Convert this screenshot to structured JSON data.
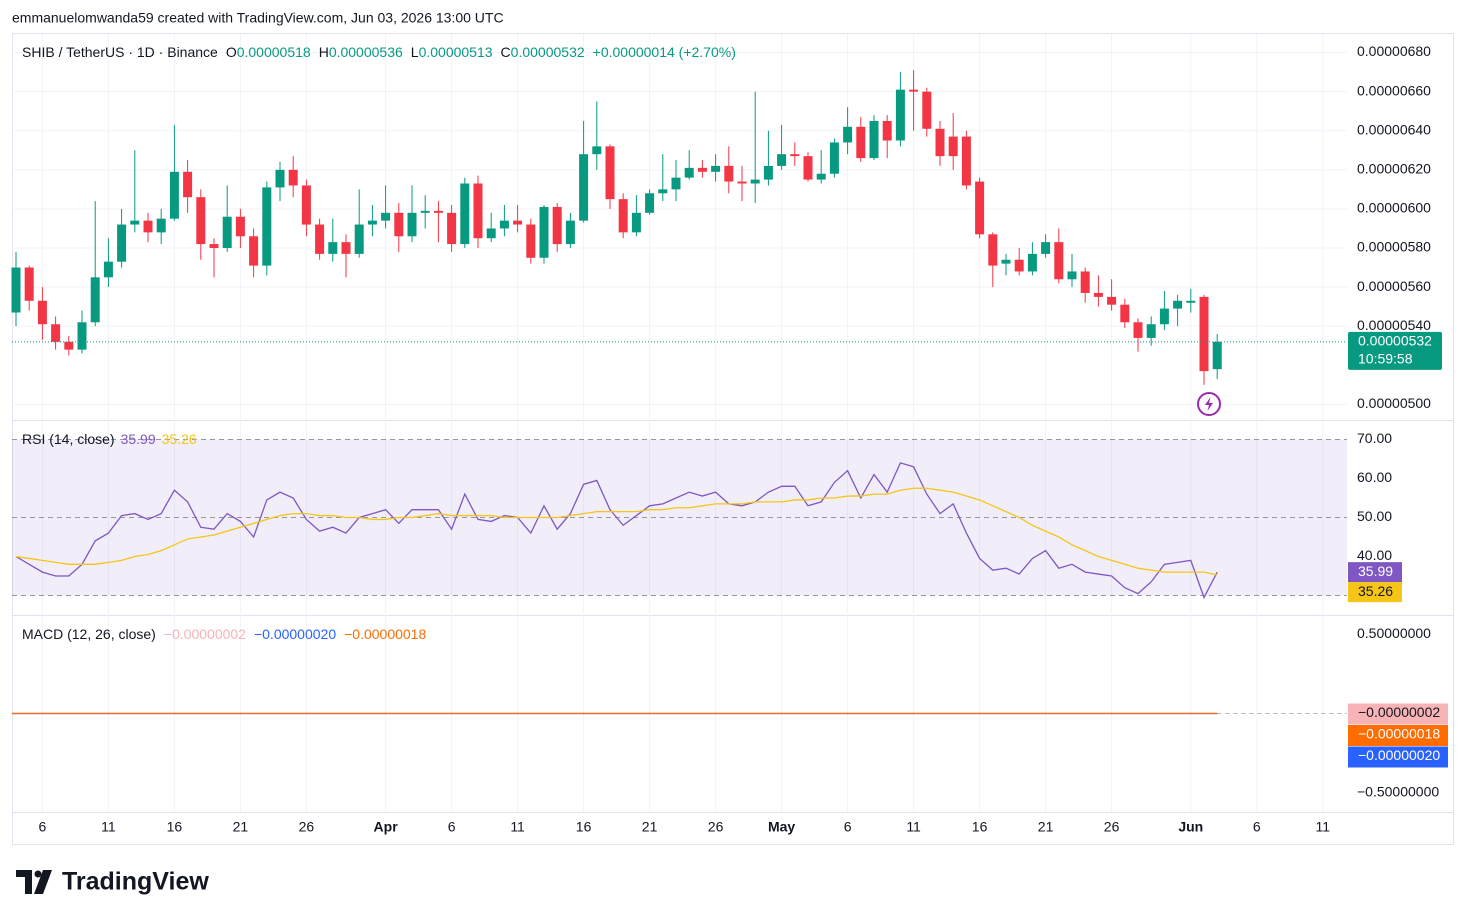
{
  "header": {
    "byline": "emmanuelomwanda59 created with TradingView.com, Jun 03, 2026 13:00 UTC",
    "logo": "TradingView"
  },
  "chart_data": {
    "type": "candlestick",
    "symbol": "SHIB / TetherUS · 1D · Binance",
    "ohlc_legend": [
      {
        "label": "O",
        "value": "0.00000518"
      },
      {
        "label": "H",
        "value": "0.00000536"
      },
      {
        "label": "L",
        "value": "0.00000513"
      },
      {
        "label": "C",
        "value": "0.00000532"
      }
    ],
    "change": "+0.00000014 (+2.70%)",
    "up_color": "#089981",
    "down_color": "#f23645",
    "x": [
      "2026-03-04",
      "2026-03-05",
      "2026-03-06",
      "2026-03-07",
      "2026-03-08",
      "2026-03-09",
      "2026-03-10",
      "2026-03-11",
      "2026-03-12",
      "2026-03-13",
      "2026-03-14",
      "2026-03-15",
      "2026-03-16",
      "2026-03-17",
      "2026-03-18",
      "2026-03-19",
      "2026-03-20",
      "2026-03-21",
      "2026-03-22",
      "2026-03-23",
      "2026-03-24",
      "2026-03-25",
      "2026-03-26",
      "2026-03-27",
      "2026-03-28",
      "2026-03-29",
      "2026-03-30",
      "2026-03-31",
      "2026-04-01",
      "2026-04-02",
      "2026-04-03",
      "2026-04-04",
      "2026-04-05",
      "2026-04-06",
      "2026-04-07",
      "2026-04-08",
      "2026-04-09",
      "2026-04-10",
      "2026-04-11",
      "2026-04-12",
      "2026-04-13",
      "2026-04-14",
      "2026-04-15",
      "2026-04-16",
      "2026-04-17",
      "2026-04-18",
      "2026-04-19",
      "2026-04-20",
      "2026-04-21",
      "2026-04-22",
      "2026-04-23",
      "2026-04-24",
      "2026-04-25",
      "2026-04-26",
      "2026-04-27",
      "2026-04-28",
      "2026-04-29",
      "2026-04-30",
      "2026-05-01",
      "2026-05-02",
      "2026-05-03",
      "2026-05-04",
      "2026-05-05",
      "2026-05-06",
      "2026-05-07",
      "2026-05-08",
      "2026-05-09",
      "2026-05-10",
      "2026-05-11",
      "2026-05-12",
      "2026-05-13",
      "2026-05-14",
      "2026-05-15",
      "2026-05-16",
      "2026-05-17",
      "2026-05-18",
      "2026-05-19",
      "2026-05-20",
      "2026-05-21",
      "2026-05-22",
      "2026-05-23",
      "2026-05-24",
      "2026-05-25",
      "2026-05-26",
      "2026-05-27",
      "2026-05-28",
      "2026-05-29",
      "2026-05-30",
      "2026-05-31",
      "2026-06-01",
      "2026-06-02",
      "2026-06-03"
    ],
    "open": [
      5.47e-06,
      5.7e-06,
      5.53e-06,
      5.41e-06,
      5.32e-06,
      5.28e-06,
      5.42e-06,
      5.65e-06,
      5.73e-06,
      5.92e-06,
      5.94e-06,
      5.88e-06,
      5.95e-06,
      6.19e-06,
      6.06e-06,
      5.82e-06,
      5.8e-06,
      5.96e-06,
      5.86e-06,
      5.71e-06,
      6.11e-06,
      6.2e-06,
      6.12e-06,
      5.92e-06,
      5.77e-06,
      5.83e-06,
      5.77e-06,
      5.92e-06,
      5.94e-06,
      5.98e-06,
      5.86e-06,
      5.98e-06,
      5.99e-06,
      5.98e-06,
      5.82e-06,
      6.13e-06,
      5.85e-06,
      5.9e-06,
      5.94e-06,
      5.92e-06,
      5.75e-06,
      6.01e-06,
      5.82e-06,
      5.94e-06,
      6.28e-06,
      6.32e-06,
      6.05e-06,
      5.88e-06,
      5.98e-06,
      6.08e-06,
      6.1e-06,
      6.16e-06,
      6.21e-06,
      6.19e-06,
      6.22e-06,
      6.14e-06,
      6.13e-06,
      6.15e-06,
      6.22e-06,
      6.28e-06,
      6.27e-06,
      6.15e-06,
      6.18e-06,
      6.34e-06,
      6.42e-06,
      6.26e-06,
      6.45e-06,
      6.35e-06,
      6.61e-06,
      6.6e-06,
      6.41e-06,
      6.37e-06,
      6.37e-06,
      6.14e-06,
      5.87e-06,
      5.72e-06,
      5.74e-06,
      5.68e-06,
      5.77e-06,
      5.83e-06,
      5.64e-06,
      5.68e-06,
      5.57e-06,
      5.55e-06,
      5.51e-06,
      5.42e-06,
      5.34e-06,
      5.41e-06,
      5.49e-06,
      5.52e-06,
      5.55e-06,
      5.18e-06
    ],
    "high": [
      5.78e-06,
      5.71e-06,
      5.6e-06,
      5.45e-06,
      5.35e-06,
      5.48e-06,
      6.04e-06,
      5.85e-06,
      6e-06,
      6.3e-06,
      5.98e-06,
      6e-06,
      6.43e-06,
      6.25e-06,
      6.1e-06,
      5.85e-06,
      6.12e-06,
      6e-06,
      5.9e-06,
      6.14e-06,
      6.24e-06,
      6.27e-06,
      6.15e-06,
      5.95e-06,
      5.95e-06,
      5.87e-06,
      6.1e-06,
      6.02e-06,
      6.12e-06,
      6.03e-06,
      6.12e-06,
      6.07e-06,
      6.04e-06,
      6.02e-06,
      6.16e-06,
      6.17e-06,
      5.98e-06,
      6.02e-06,
      6.02e-06,
      5.95e-06,
      6.02e-06,
      6.03e-06,
      5.98e-06,
      6.45e-06,
      6.55e-06,
      6.33e-06,
      6.08e-06,
      6.07e-06,
      6.1e-06,
      6.28e-06,
      6.25e-06,
      6.3e-06,
      6.25e-06,
      6.28e-06,
      6.32e-06,
      6.22e-06,
      6.6e-06,
      6.4e-06,
      6.43e-06,
      6.34e-06,
      6.29e-06,
      6.3e-06,
      6.36e-06,
      6.52e-06,
      6.47e-06,
      6.48e-06,
      6.48e-06,
      6.7e-06,
      6.71e-06,
      6.62e-06,
      6.45e-06,
      6.49e-06,
      6.4e-06,
      6.16e-06,
      5.88e-06,
      5.77e-06,
      5.8e-06,
      5.83e-06,
      5.87e-06,
      5.9e-06,
      5.77e-06,
      5.7e-06,
      5.66e-06,
      5.64e-06,
      5.54e-06,
      5.44e-06,
      5.45e-06,
      5.58e-06,
      5.56e-06,
      5.59e-06,
      5.56e-06,
      5.36e-06
    ],
    "low": [
      5.4e-06,
      5.48e-06,
      5.33e-06,
      5.28e-06,
      5.25e-06,
      5.26e-06,
      5.4e-06,
      5.6e-06,
      5.7e-06,
      5.88e-06,
      5.83e-06,
      5.82e-06,
      5.94e-06,
      5.98e-06,
      5.74e-06,
      5.65e-06,
      5.78e-06,
      5.8e-06,
      5.65e-06,
      5.66e-06,
      6.04e-06,
      6.06e-06,
      5.86e-06,
      5.74e-06,
      5.73e-06,
      5.65e-06,
      5.75e-06,
      5.86e-06,
      5.9e-06,
      5.78e-06,
      5.83e-06,
      5.9e-06,
      5.83e-06,
      5.78e-06,
      5.8e-06,
      5.8e-06,
      5.83e-06,
      5.86e-06,
      5.88e-06,
      5.72e-06,
      5.72e-06,
      5.78e-06,
      5.8e-06,
      5.93e-06,
      6.2e-06,
      6e-06,
      5.85e-06,
      5.86e-06,
      5.97e-06,
      6.04e-06,
      6.04e-06,
      6.15e-06,
      6.16e-06,
      6.14e-06,
      6.08e-06,
      6.04e-06,
      6.03e-06,
      6.12e-06,
      6.2e-06,
      6.22e-06,
      6.14e-06,
      6.13e-06,
      6.16e-06,
      6.28e-06,
      6.24e-06,
      6.25e-06,
      6.26e-06,
      6.32e-06,
      6.4e-06,
      6.37e-06,
      6.22e-06,
      6.2e-06,
      6.1e-06,
      5.85e-06,
      5.6e-06,
      5.66e-06,
      5.66e-06,
      5.66e-06,
      5.75e-06,
      5.62e-06,
      5.6e-06,
      5.52e-06,
      5.5e-06,
      5.48e-06,
      5.39e-06,
      5.27e-06,
      5.3e-06,
      5.38e-06,
      5.4e-06,
      5.47e-06,
      5.1e-06,
      5.13e-06
    ],
    "close": [
      5.7e-06,
      5.53e-06,
      5.41e-06,
      5.32e-06,
      5.28e-06,
      5.42e-06,
      5.65e-06,
      5.73e-06,
      5.92e-06,
      5.94e-06,
      5.88e-06,
      5.95e-06,
      6.19e-06,
      6.06e-06,
      5.82e-06,
      5.8e-06,
      5.96e-06,
      5.86e-06,
      5.71e-06,
      6.11e-06,
      6.2e-06,
      6.12e-06,
      5.92e-06,
      5.77e-06,
      5.83e-06,
      5.77e-06,
      5.92e-06,
      5.94e-06,
      5.98e-06,
      5.86e-06,
      5.98e-06,
      5.99e-06,
      5.98e-06,
      5.82e-06,
      6.13e-06,
      5.85e-06,
      5.9e-06,
      5.94e-06,
      5.92e-06,
      5.75e-06,
      6.01e-06,
      5.82e-06,
      5.94e-06,
      6.28e-06,
      6.32e-06,
      6.05e-06,
      5.88e-06,
      5.98e-06,
      6.08e-06,
      6.1e-06,
      6.16e-06,
      6.21e-06,
      6.19e-06,
      6.22e-06,
      6.14e-06,
      6.13e-06,
      6.15e-06,
      6.22e-06,
      6.28e-06,
      6.27e-06,
      6.15e-06,
      6.18e-06,
      6.34e-06,
      6.42e-06,
      6.26e-06,
      6.45e-06,
      6.35e-06,
      6.61e-06,
      6.6e-06,
      6.41e-06,
      6.27e-06,
      6.27e-06,
      6.12e-06,
      5.87e-06,
      5.71e-06,
      5.74e-06,
      5.68e-06,
      5.77e-06,
      5.83e-06,
      5.64e-06,
      5.68e-06,
      5.57e-06,
      5.55e-06,
      5.51e-06,
      5.42e-06,
      5.34e-06,
      5.41e-06,
      5.49e-06,
      5.53e-06,
      5.53e-06,
      5.17e-06,
      5.32e-06
    ],
    "ylim": [
      4.92e-06,
      6.9e-06
    ],
    "yticks": [
      {
        "value": 6.8e-06,
        "label": "0.00000680"
      },
      {
        "value": 6.6e-06,
        "label": "0.00000660"
      },
      {
        "value": 6.4e-06,
        "label": "0.00000640"
      },
      {
        "value": 6.2e-06,
        "label": "0.00000620"
      },
      {
        "value": 6e-06,
        "label": "0.00000600"
      },
      {
        "value": 5.8e-06,
        "label": "0.00000580"
      },
      {
        "value": 5.6e-06,
        "label": "0.00000560"
      },
      {
        "value": 5.4e-06,
        "label": "0.00000540"
      },
      {
        "value": 5e-06,
        "label": "0.00000500"
      }
    ],
    "xticks": [
      {
        "value": "2026-03-06",
        "label": "6"
      },
      {
        "value": "2026-03-11",
        "label": "11"
      },
      {
        "value": "2026-03-16",
        "label": "16"
      },
      {
        "value": "2026-03-21",
        "label": "21"
      },
      {
        "value": "2026-03-26",
        "label": "26"
      },
      {
        "value": "2026-04-01",
        "label": "Apr"
      },
      {
        "value": "2026-04-06",
        "label": "6"
      },
      {
        "value": "2026-04-11",
        "label": "11"
      },
      {
        "value": "2026-04-16",
        "label": "16"
      },
      {
        "value": "2026-04-21",
        "label": "21"
      },
      {
        "value": "2026-04-26",
        "label": "26"
      },
      {
        "value": "2026-05-01",
        "label": "May"
      },
      {
        "value": "2026-05-06",
        "label": "6"
      },
      {
        "value": "2026-05-11",
        "label": "11"
      },
      {
        "value": "2026-05-16",
        "label": "16"
      },
      {
        "value": "2026-05-21",
        "label": "21"
      },
      {
        "value": "2026-05-26",
        "label": "26"
      },
      {
        "value": "2026-06-01",
        "label": "Jun"
      },
      {
        "value": "2026-06-06",
        "label": "6"
      },
      {
        "value": "2026-06-11",
        "label": "11"
      }
    ],
    "grid": true,
    "last_price_label": "0.00000532",
    "countdown": "10:59:58",
    "rsi": {
      "title": "RSI (14, close)",
      "series": [
        {
          "color": "#7e57c2",
          "values": [
            40,
            38,
            36,
            35,
            35,
            38,
            44,
            46,
            50.5,
            51,
            49.5,
            51,
            57,
            54,
            47.5,
            47,
            51,
            49,
            45,
            54.5,
            56.5,
            55,
            49.5,
            46.5,
            47.5,
            46,
            50,
            51,
            52,
            48.5,
            52,
            52,
            52,
            47,
            56,
            49.5,
            49,
            50.5,
            50,
            46,
            53,
            47,
            51,
            58.5,
            59.5,
            52,
            48,
            50.5,
            53,
            53.5,
            55,
            56.5,
            55.5,
            56.5,
            53.5,
            53,
            54,
            56.5,
            58,
            58,
            53,
            54,
            59,
            62,
            55,
            61,
            56.5,
            64,
            63,
            56,
            51,
            53.5,
            46,
            39.5,
            36.5,
            37,
            35.5,
            39.5,
            41.5,
            37,
            38,
            36,
            35.5,
            35,
            32,
            30.5,
            33.5,
            38,
            38.5,
            39,
            29.5,
            35.99
          ]
        },
        {
          "color": "#f5c518",
          "values": [
            40,
            39.5,
            39,
            38.5,
            38,
            38,
            38,
            38.5,
            39,
            40,
            40.5,
            41.5,
            43,
            44.5,
            45,
            45.5,
            46.5,
            47.5,
            48.5,
            49.5,
            50.5,
            51,
            51,
            50.5,
            50.5,
            50,
            50,
            49.5,
            49.5,
            50,
            50,
            50.5,
            51,
            50.5,
            50.5,
            50.5,
            50.5,
            50,
            50,
            50,
            50,
            50,
            50.5,
            51,
            51.5,
            51.5,
            51.5,
            51.5,
            52,
            52,
            52.5,
            52.5,
            53,
            53.5,
            53.5,
            53.5,
            54,
            54,
            54,
            54.5,
            54.5,
            55,
            55,
            55.5,
            55.5,
            56,
            56,
            57,
            57.5,
            57.5,
            57,
            56.5,
            55.5,
            54.5,
            53,
            51.5,
            50,
            48,
            46.5,
            45,
            43,
            41.5,
            40,
            39,
            38,
            37,
            36.5,
            36,
            36,
            36,
            36,
            35.26
          ]
        }
      ],
      "ylim": [
        25,
        75
      ],
      "yticks": [
        {
          "value": 70,
          "label": "70.00"
        },
        {
          "value": 60,
          "label": "60.00"
        },
        {
          "value": 50,
          "label": "50.00"
        },
        {
          "value": 40,
          "label": "40.00"
        }
      ],
      "bands": [
        70,
        50,
        30
      ],
      "band_color": "#7e57c2"
    },
    "macd": {
      "title": "MACD (12, 26, close)",
      "series": [
        {
          "color": "#f7b3b6",
          "value": -2e-08,
          "value_label": "−0.00000002"
        },
        {
          "color": "#2962ff",
          "value": -2e-07,
          "value_label": "−0.00000020"
        },
        {
          "color": "#ff6d00",
          "value": -1.8e-07,
          "value_label": "−0.00000018"
        }
      ],
      "ylim": [
        -0.62,
        0.62
      ],
      "yticks": [
        {
          "value": 0.5,
          "label": "0.50000000"
        },
        {
          "value": -0.5,
          "label": "−0.50000000"
        }
      ]
    }
  }
}
